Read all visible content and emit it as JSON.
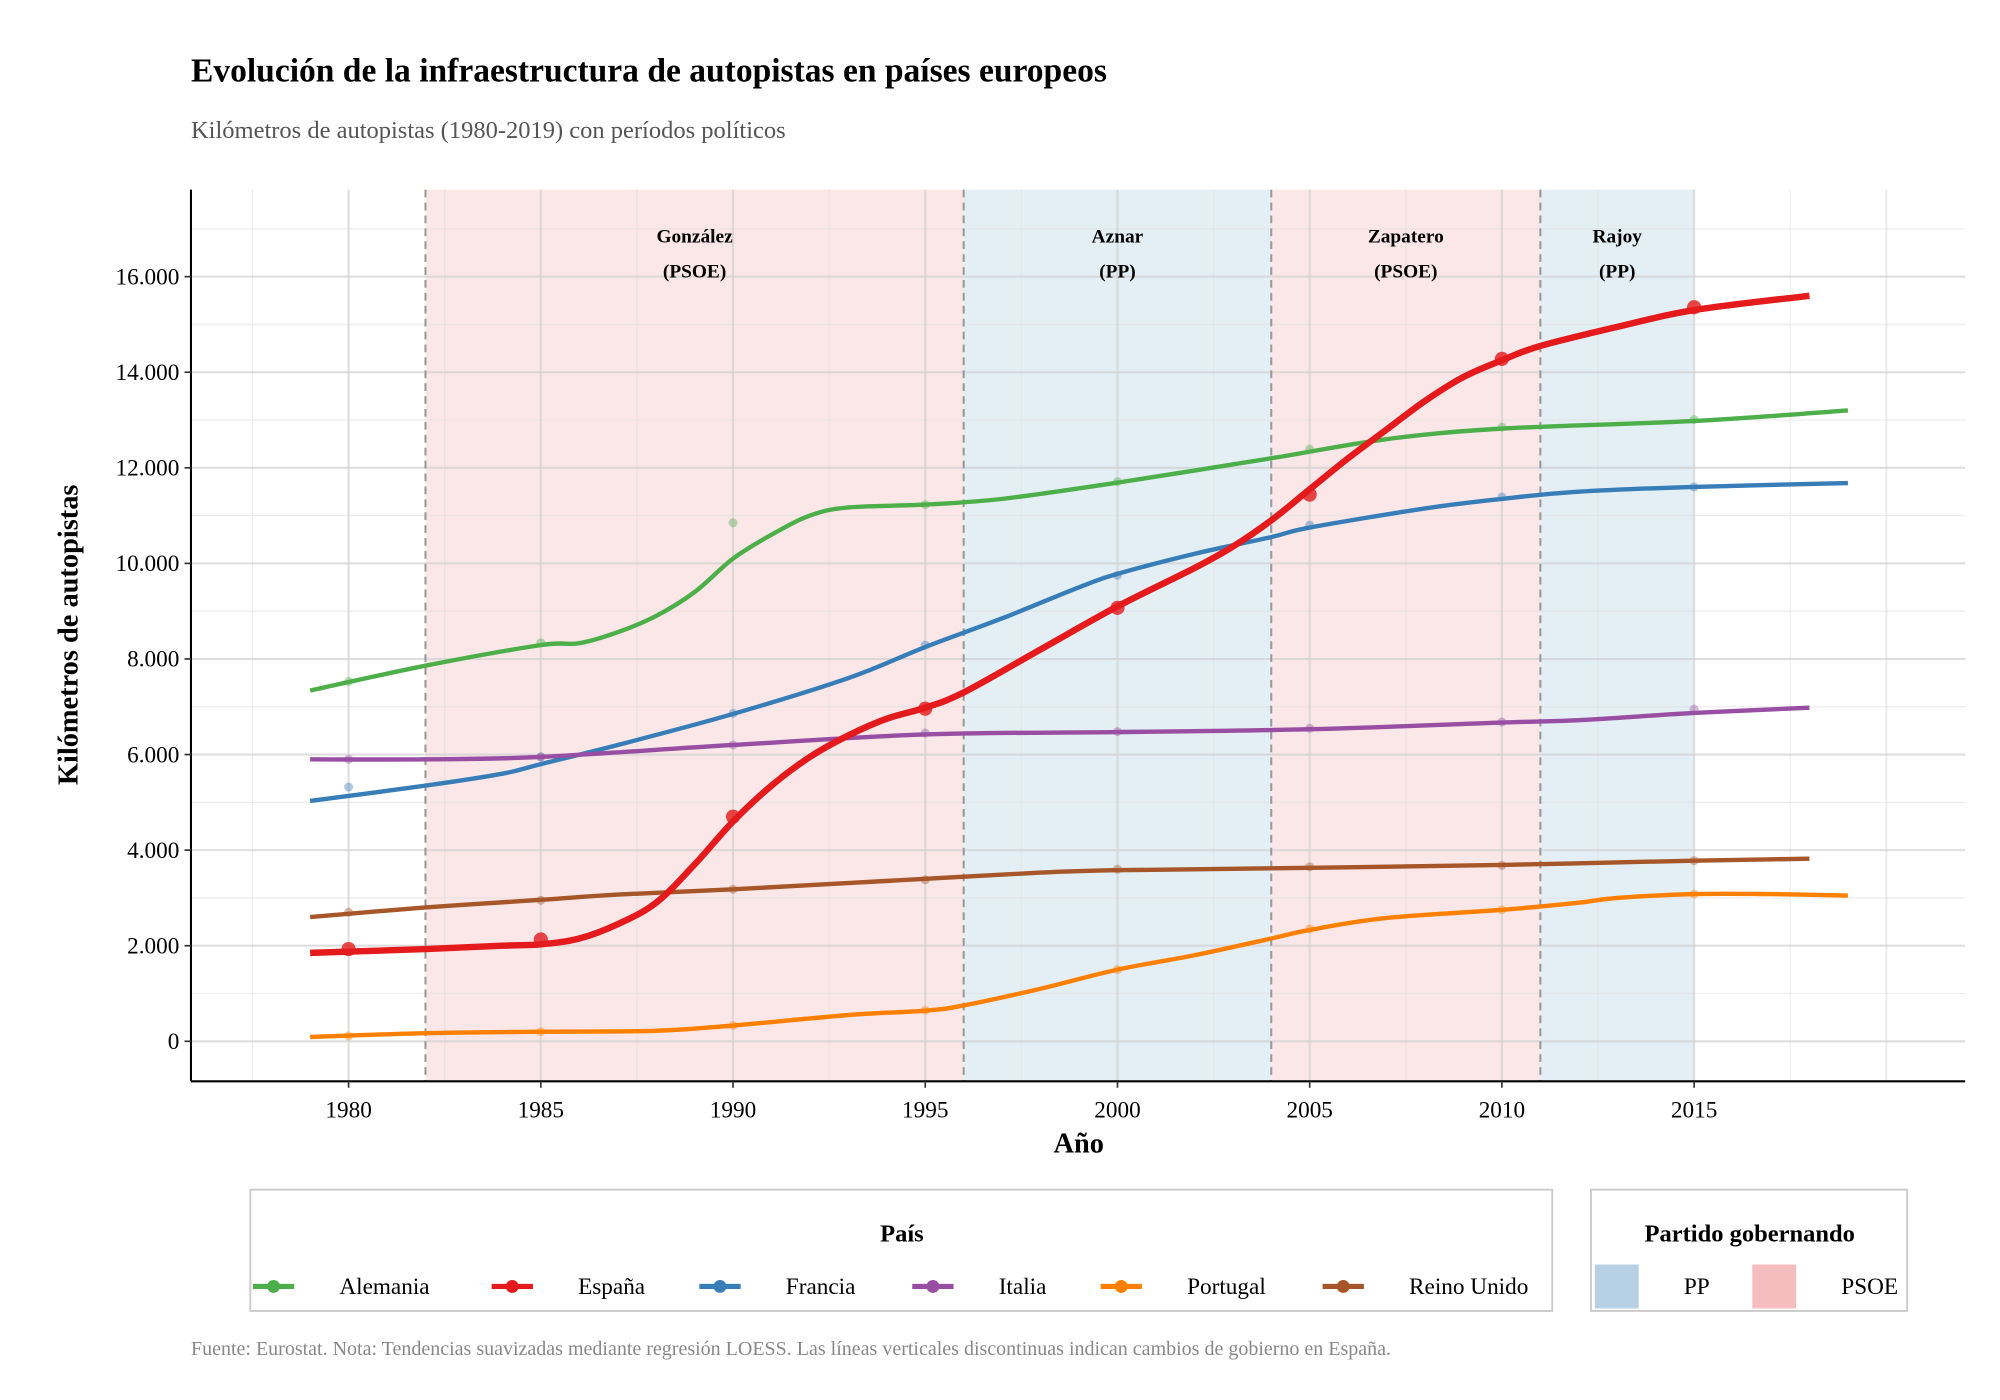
{
  "chart_data": {
    "type": "line",
    "title": "Evolución de la infraestructura de autopistas en países europeos",
    "subtitle": "Kilómetros de autopistas (1980-2019) con períodos políticos",
    "xlabel": "Año",
    "ylabel": "Kilómetros de autopistas",
    "caption": "Fuente: Eurostat. Nota: Tendencias suavizadas mediante regresión LOESS. Las líneas verticales discontinuas indican cambios de gobierno en España.",
    "xlim": [
      1975.9,
      2022.05
    ],
    "ylim": [
      -837,
      17820
    ],
    "x_ticks": [
      1980,
      1985,
      1990,
      1995,
      2000,
      2005,
      2010,
      2015
    ],
    "x_tick_labels": [
      "1980",
      "1985",
      "1990",
      "1995",
      "2000",
      "2005",
      "2010",
      "2015"
    ],
    "y_ticks": [
      0,
      2000,
      4000,
      6000,
      8000,
      10000,
      12000,
      14000,
      16000
    ],
    "y_tick_labels": [
      "0",
      "2.000",
      "4.000",
      "6.000",
      "8.000",
      "10.000",
      "12.000",
      "14.000",
      "16.000"
    ],
    "grid": true,
    "legend_position": "bottom",
    "legend_country_title": "País",
    "legend_party_title": "Partido gobernando",
    "parties": [
      {
        "name": "PP",
        "color": "#b3cde3"
      },
      {
        "name": "PSOE",
        "color": "#f4b9bb"
      }
    ],
    "periods": [
      {
        "leader": "González",
        "party": "PSOE",
        "party_label": "(PSOE)",
        "start": 1982,
        "end": 1996
      },
      {
        "leader": "Aznar",
        "party": "PP",
        "party_label": "(PP)",
        "start": 1996,
        "end": 2004
      },
      {
        "leader": "Zapatero",
        "party": "PSOE",
        "party_label": "(PSOE)",
        "start": 2004,
        "end": 2011
      },
      {
        "leader": "Rajoy",
        "party": "PP",
        "party_label": "(PP)",
        "start": 2011,
        "end": 2015
      }
    ],
    "government_changes": [
      1982,
      1996,
      2004,
      2011
    ],
    "point_years": [
      1980,
      1985,
      1990,
      1995,
      2000,
      2005,
      2010,
      2015
    ],
    "series": [
      {
        "name": "Alemania",
        "color": "#4daf4a",
        "points": [
          7530,
          8340,
          10850,
          11230,
          11710,
          12390,
          12850,
          13010
        ],
        "trend_x": [
          1979,
          1982,
          1985,
          1986,
          1987,
          1988,
          1989,
          1990,
          1991,
          1992,
          1993,
          1995,
          1997,
          2000,
          2004,
          2007,
          2010,
          2015,
          2019
        ],
        "trend_y": [
          7340,
          7860,
          8290,
          8330,
          8560,
          8900,
          9400,
          10100,
          10600,
          11000,
          11170,
          11230,
          11350,
          11690,
          12200,
          12600,
          12820,
          12980,
          13200
        ]
      },
      {
        "name": "España",
        "color": "#e41a1c",
        "points": [
          1930,
          2130,
          4700,
          6960,
          9070,
          11440,
          14280,
          15360
        ],
        "trend_x": [
          1979,
          1982,
          1984,
          1985,
          1986,
          1987,
          1988,
          1989,
          1990,
          1991,
          1992,
          1993,
          1994,
          1995,
          1996,
          1998,
          2000,
          2002,
          2003,
          2004,
          2005,
          2006,
          2007,
          2008,
          2009,
          2010,
          2011,
          2013,
          2015,
          2018
        ],
        "trend_y": [
          1850,
          1930,
          2000,
          2030,
          2150,
          2450,
          2900,
          3700,
          4600,
          5350,
          5950,
          6400,
          6750,
          6980,
          7300,
          8200,
          9100,
          9900,
          10350,
          10900,
          11550,
          12200,
          12800,
          13400,
          13900,
          14250,
          14550,
          14950,
          15300,
          15600
        ]
      },
      {
        "name": "Francia",
        "color": "#377eb8",
        "points": [
          5320,
          5950,
          6860,
          8290,
          9750,
          10800,
          11390,
          11600
        ],
        "trend_x": [
          1979,
          1982,
          1984,
          1985,
          1987,
          1990,
          1993,
          1995,
          1997,
          1999,
          2000,
          2002,
          2004,
          2005,
          2008,
          2010,
          2012,
          2015,
          2019
        ],
        "trend_y": [
          5030,
          5350,
          5600,
          5800,
          6200,
          6850,
          7600,
          8250,
          8850,
          9500,
          9780,
          10200,
          10550,
          10750,
          11150,
          11350,
          11500,
          11600,
          11680
        ]
      },
      {
        "name": "Italia",
        "color": "#984ea3",
        "points": [
          5900,
          5950,
          6200,
          6450,
          6480,
          6550,
          6680,
          6950
        ],
        "trend_x": [
          1979,
          1982,
          1985,
          1990,
          1995,
          2000,
          2005,
          2010,
          2012,
          2015,
          2018
        ],
        "trend_y": [
          5900,
          5900,
          5950,
          6200,
          6420,
          6470,
          6530,
          6670,
          6720,
          6870,
          6980
        ]
      },
      {
        "name": "Portugal",
        "color": "#ff7f00",
        "points": [
          110,
          200,
          330,
          650,
          1500,
          2350,
          2750,
          3080
        ],
        "trend_x": [
          1979,
          1982,
          1985,
          1988,
          1990,
          1993,
          1995,
          1996,
          1998,
          2000,
          2002,
          2004,
          2005,
          2007,
          2010,
          2012,
          2013,
          2015,
          2017,
          2019
        ],
        "trend_y": [
          90,
          170,
          200,
          220,
          330,
          550,
          640,
          750,
          1100,
          1500,
          1800,
          2150,
          2330,
          2580,
          2750,
          2900,
          3000,
          3080,
          3080,
          3050
        ]
      },
      {
        "name": "Reino Unido",
        "color": "#a65628",
        "points": [
          2700,
          2950,
          3180,
          3380,
          3600,
          3650,
          3680,
          3780
        ],
        "trend_x": [
          1979,
          1982,
          1985,
          1987,
          1990,
          1995,
          1998,
          2000,
          2005,
          2010,
          2015,
          2018
        ],
        "trend_y": [
          2600,
          2800,
          2960,
          3070,
          3180,
          3400,
          3530,
          3580,
          3630,
          3690,
          3780,
          3820
        ]
      }
    ]
  }
}
